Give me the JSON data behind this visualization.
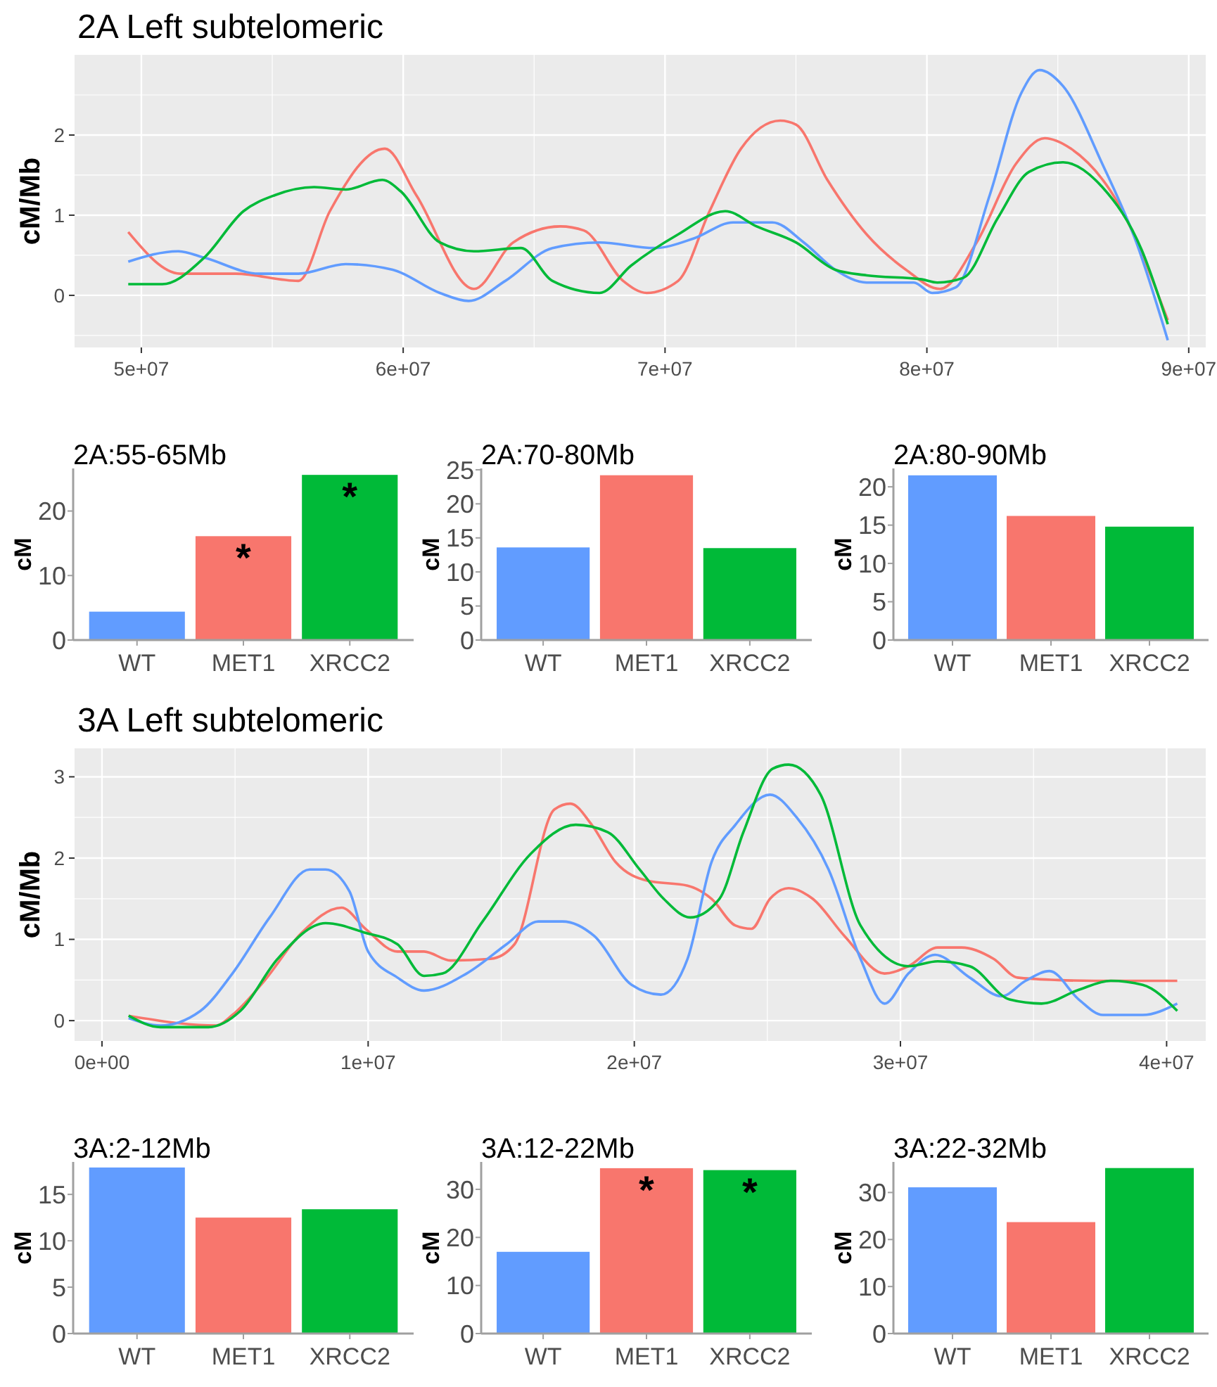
{
  "chart_data": [
    {
      "type": "line",
      "title": "2A Left subtelomeric",
      "ylabel": "cM/Mb",
      "grid": true,
      "xlim": [
        47450000,
        90650000
      ],
      "ylim": [
        -0.65,
        3.0
      ],
      "xticks": [
        {
          "value": 50000000,
          "label": "5e+07"
        },
        {
          "value": 55000000,
          "label": null
        },
        {
          "value": 60000000,
          "label": "6e+07"
        },
        {
          "value": 65000000,
          "label": null
        },
        {
          "value": 70000000,
          "label": "7e+07"
        },
        {
          "value": 75000000,
          "label": null
        },
        {
          "value": 80000000,
          "label": "8e+07"
        },
        {
          "value": 85000000,
          "label": null
        },
        {
          "value": 90000000,
          "label": "9e+07"
        }
      ],
      "yticks": [
        {
          "value": -0.5,
          "label": null
        },
        0,
        {
          "value": 0.5,
          "label": null
        },
        1,
        {
          "value": 1.5,
          "label": null
        },
        2,
        {
          "value": 2.5,
          "label": null
        }
      ],
      "series": [
        {
          "color": "#f8766d",
          "x": [
            49500000,
            51500000,
            53600000,
            56000000,
            57200000,
            59300000,
            60500000,
            62700000,
            64200000,
            66000000,
            66900000,
            68400000,
            69300000,
            70500000,
            71700000,
            72900000,
            74400000,
            75000000,
            76200000,
            77700000,
            79200000,
            80500000,
            81900000,
            83400000,
            84500000,
            85500000,
            87300000,
            89200000
          ],
          "values": [
            0.79,
            0.27,
            0.27,
            0.18,
            1.05,
            1.83,
            1.25,
            0.08,
            0.66,
            0.86,
            0.81,
            0.18,
            0.03,
            0.18,
            1.05,
            1.83,
            2.18,
            2.13,
            1.44,
            0.76,
            0.32,
            0.08,
            0.66,
            1.64,
            1.96,
            1.83,
            1.15,
            -0.31
          ]
        },
        {
          "color": "#619cff",
          "x": [
            49500000,
            51400000,
            52400000,
            54500000,
            56000000,
            57800000,
            59600000,
            61400000,
            62500000,
            63900000,
            65700000,
            67500000,
            69600000,
            71100000,
            72600000,
            74100000,
            75300000,
            76500000,
            77700000,
            79500000,
            80200000,
            81100000,
            82400000,
            83600000,
            84300000,
            85200000,
            86700000,
            88000000,
            89200000
          ],
          "values": [
            0.42,
            0.55,
            0.47,
            0.27,
            0.27,
            0.39,
            0.32,
            0.03,
            -0.07,
            0.18,
            0.59,
            0.66,
            0.59,
            0.71,
            0.91,
            0.91,
            0.66,
            0.32,
            0.16,
            0.16,
            0.03,
            0.1,
            1.25,
            2.52,
            2.81,
            2.61,
            1.64,
            0.66,
            -0.56
          ]
        },
        {
          "color": "#00ba38",
          "x": [
            49500000,
            50800000,
            52400000,
            53900000,
            55100000,
            56600000,
            57800000,
            59200000,
            59900000,
            61400000,
            62700000,
            64500000,
            65700000,
            67500000,
            68700000,
            70500000,
            72300000,
            73500000,
            75000000,
            76500000,
            77700000,
            79800000,
            80400000,
            81400000,
            82700000,
            83900000,
            85200000,
            86700000,
            88200000,
            89200000
          ],
          "values": [
            0.14,
            0.14,
            0.47,
            1.05,
            1.25,
            1.35,
            1.32,
            1.44,
            1.3,
            0.66,
            0.55,
            0.59,
            0.18,
            0.03,
            0.37,
            0.76,
            1.05,
            0.86,
            0.66,
            0.32,
            0.25,
            0.2,
            0.16,
            0.22,
            0.96,
            1.54,
            1.66,
            1.35,
            0.57,
            -0.36
          ]
        }
      ]
    },
    {
      "type": "bar",
      "title": "2A:55-65Mb",
      "ylabel": "cM",
      "categories": [
        "WT",
        "MET1",
        "XRCC2"
      ],
      "values": [
        4.4,
        16.1,
        25.6
      ],
      "colors": [
        "#619cff",
        "#f8766d",
        "#00ba38"
      ],
      "ylim": [
        0,
        26.6
      ],
      "yticks": [
        0,
        10,
        20
      ],
      "annotations": [
        {
          "text": "*",
          "x": "MET1",
          "y": 16.1
        },
        {
          "text": "*",
          "x": "XRCC2",
          "y": 25.6
        }
      ]
    },
    {
      "type": "bar",
      "title": "2A:70-80Mb",
      "ylabel": "cM",
      "categories": [
        "WT",
        "MET1",
        "XRCC2"
      ],
      "values": [
        13.6,
        24.2,
        13.5
      ],
      "colors": [
        "#619cff",
        "#f8766d",
        "#00ba38"
      ],
      "ylim": [
        0,
        25.2
      ],
      "yticks": [
        0,
        5,
        10,
        15,
        20,
        25
      ]
    },
    {
      "type": "bar",
      "title": "2A:80-90Mb",
      "ylabel": "cM",
      "categories": [
        "WT",
        "MET1",
        "XRCC2"
      ],
      "values": [
        21.5,
        16.2,
        14.8
      ],
      "colors": [
        "#619cff",
        "#f8766d",
        "#00ba38"
      ],
      "ylim": [
        0,
        22.4
      ],
      "yticks": [
        0,
        5,
        10,
        15,
        20
      ]
    },
    {
      "type": "line",
      "title": "3A Left subtelomeric",
      "ylabel": "cM/Mb",
      "grid": true,
      "xlim": [
        -1030000,
        41470000
      ],
      "ylim": [
        -0.25,
        3.35
      ],
      "xticks": [
        {
          "value": 0,
          "label": "0e+00"
        },
        {
          "value": 5000000,
          "label": null
        },
        {
          "value": 10000000,
          "label": "1e+07"
        },
        {
          "value": 15000000,
          "label": null
        },
        {
          "value": 20000000,
          "label": "2e+07"
        },
        {
          "value": 25000000,
          "label": null
        },
        {
          "value": 30000000,
          "label": "3e+07"
        },
        {
          "value": 35000000,
          "label": null
        },
        {
          "value": 40000000,
          "label": "4e+07"
        }
      ],
      "yticks": [
        0,
        {
          "value": 0.5,
          "label": null
        },
        1,
        {
          "value": 1.5,
          "label": null
        },
        2,
        {
          "value": 2.5,
          "label": null
        },
        3
      ],
      "series": [
        {
          "color": "#f8766d",
          "x": [
            1000000,
            4300000,
            4900000,
            6100000,
            7500000,
            9000000,
            9900000,
            11100000,
            12100000,
            13100000,
            14600000,
            15500000,
            17000000,
            17600000,
            18400000,
            19300000,
            20500000,
            22000000,
            22900000,
            23800000,
            24400000,
            25100000,
            25800000,
            26700000,
            27900000,
            29400000,
            30300000,
            31400000,
            32300000,
            33500000,
            34400000,
            35900000,
            37300000,
            40400000
          ],
          "values": [
            0.06,
            -0.06,
            0.07,
            0.49,
            1.08,
            1.39,
            1.13,
            0.85,
            0.85,
            0.74,
            0.76,
            0.94,
            2.6,
            2.67,
            2.41,
            1.95,
            1.72,
            1.66,
            1.5,
            1.17,
            1.13,
            1.5,
            1.63,
            1.5,
            1.04,
            0.58,
            0.67,
            0.9,
            0.9,
            0.76,
            0.53,
            0.5,
            0.49,
            0.49
          ]
        },
        {
          "color": "#619cff",
          "x": [
            1000000,
            2200000,
            3700000,
            4900000,
            6300000,
            7800000,
            8400000,
            9300000,
            10000000,
            11100000,
            12100000,
            13700000,
            15200000,
            16400000,
            17300000,
            18500000,
            19900000,
            21000000,
            22000000,
            22900000,
            23800000,
            25100000,
            26100000,
            27300000,
            28500000,
            29400000,
            30300000,
            31300000,
            32600000,
            33800000,
            34700000,
            35600000,
            36700000,
            37600000,
            39100000,
            40400000
          ],
          "values": [
            0.03,
            -0.06,
            0.12,
            0.58,
            1.27,
            1.86,
            1.86,
            1.59,
            0.85,
            0.53,
            0.37,
            0.58,
            0.94,
            1.22,
            1.22,
            1.04,
            0.44,
            0.32,
            0.76,
            1.95,
            2.41,
            2.78,
            2.5,
            1.86,
            0.76,
            0.21,
            0.58,
            0.81,
            0.53,
            0.3,
            0.49,
            0.61,
            0.26,
            0.07,
            0.07,
            0.21
          ]
        },
        {
          "color": "#00ba38",
          "x": [
            1000000,
            2200000,
            4000000,
            5200000,
            6600000,
            8400000,
            9900000,
            11100000,
            12100000,
            12800000,
            14300000,
            16100000,
            17800000,
            19000000,
            20200000,
            21100000,
            22100000,
            23200000,
            24100000,
            25200000,
            25800000,
            27000000,
            28500000,
            30300000,
            31400000,
            32600000,
            34100000,
            35300000,
            36700000,
            37900000,
            39100000,
            40400000
          ],
          "values": [
            0.06,
            -0.08,
            -0.08,
            0.12,
            0.76,
            1.2,
            1.08,
            0.94,
            0.55,
            0.58,
            1.22,
            2.05,
            2.41,
            2.32,
            1.86,
            1.5,
            1.27,
            1.5,
            2.32,
            3.1,
            3.15,
            2.78,
            1.17,
            0.67,
            0.73,
            0.67,
            0.26,
            0.21,
            0.38,
            0.49,
            0.44,
            0.12
          ]
        }
      ]
    },
    {
      "type": "bar",
      "title": "3A:2-12Mb",
      "ylabel": "cM",
      "categories": [
        "WT",
        "MET1",
        "XRCC2"
      ],
      "values": [
        17.9,
        12.5,
        13.4
      ],
      "colors": [
        "#619cff",
        "#f8766d",
        "#00ba38"
      ],
      "ylim": [
        0,
        18.5
      ],
      "yticks": [
        0,
        5,
        10,
        15
      ]
    },
    {
      "type": "bar",
      "title": "3A:12-22Mb",
      "ylabel": "cM",
      "categories": [
        "WT",
        "MET1",
        "XRCC2"
      ],
      "values": [
        17,
        34.4,
        34
      ],
      "colors": [
        "#619cff",
        "#f8766d",
        "#00ba38"
      ],
      "ylim": [
        0,
        35.7
      ],
      "yticks": [
        0,
        10,
        20,
        30
      ],
      "annotations": [
        {
          "text": "*",
          "x": "MET1",
          "y": 34.4
        },
        {
          "text": "*",
          "x": "XRCC2",
          "y": 34
        }
      ]
    },
    {
      "type": "bar",
      "title": "3A:22-32Mb",
      "ylabel": "cM",
      "categories": [
        "WT",
        "MET1",
        "XRCC2"
      ],
      "values": [
        31.1,
        23.7,
        35.2
      ],
      "colors": [
        "#619cff",
        "#f8766d",
        "#00ba38"
      ],
      "ylim": [
        0,
        36.5
      ],
      "yticks": [
        0,
        10,
        20,
        30
      ]
    }
  ]
}
